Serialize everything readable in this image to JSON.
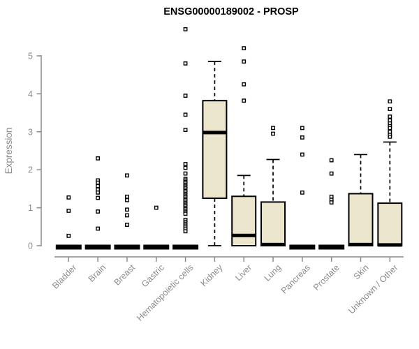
{
  "title": "ENSG00000189002 - PROSP",
  "chart_data": {
    "type": "boxplot",
    "title": "ENSG00000189002 - PROSP",
    "xlabel": "",
    "ylabel": "Expression",
    "ylim": [
      0,
      5
    ],
    "yticks": [
      0,
      1,
      2,
      3,
      4,
      5
    ],
    "grid": false,
    "legend": false,
    "colors": {
      "box_fill": "#ECE6CE",
      "box_stroke": "#000000",
      "median": "#000000",
      "whisker": "#000000",
      "axis": "#8c8c8c",
      "tick_label": "#8c8c8c",
      "title": "#000000",
      "background": "#ffffff"
    },
    "categories": [
      "Bladder",
      "Brain",
      "Breast",
      "Gastric",
      "Hematopoietic cells",
      "Kidney",
      "Liver",
      "Lung",
      "Pancreas",
      "Prostate",
      "Skin",
      "Unknown / Other"
    ],
    "boxes": [
      {
        "category": "Bladder",
        "q1": 0,
        "median": 0,
        "q3": 0,
        "whisker_low": 0,
        "whisker_high": 0,
        "outliers": [
          1.27,
          0.92,
          0.26
        ]
      },
      {
        "category": "Brain",
        "q1": 0,
        "median": 0,
        "q3": 0,
        "whisker_low": 0,
        "whisker_high": 0,
        "outliers": [
          2.3,
          1.72,
          1.66,
          1.57,
          1.48,
          1.4,
          1.26,
          0.9,
          0.45
        ]
      },
      {
        "category": "Breast",
        "q1": 0,
        "median": 0,
        "q3": 0,
        "whisker_low": 0,
        "whisker_high": 0,
        "outliers": [
          1.85,
          1.29,
          1.2,
          0.95,
          0.8,
          0.55
        ]
      },
      {
        "category": "Gastric",
        "q1": 0,
        "median": 0,
        "q3": 0,
        "whisker_low": 0,
        "whisker_high": 0,
        "outliers": [
          1.0
        ]
      },
      {
        "category": "Hematopoietic cells",
        "q1": 0,
        "median": 0,
        "q3": 0,
        "whisker_low": 0,
        "whisker_high": 0,
        "outliers": [
          5.7,
          4.8,
          3.95,
          3.45,
          3.05,
          2.15,
          2.05,
          1.9,
          1.76,
          1.72,
          1.68,
          1.64,
          1.6,
          1.56,
          1.52,
          1.48,
          1.44,
          1.4,
          1.36,
          1.32,
          1.28,
          1.24,
          1.2,
          1.16,
          1.12,
          1.08,
          1.04,
          1.0,
          0.96,
          0.92,
          0.88,
          0.84,
          0.68,
          0.63,
          0.58,
          0.53,
          0.48,
          0.43,
          0.38
        ]
      },
      {
        "category": "Kidney",
        "q1": 1.25,
        "median": 2.98,
        "q3": 3.82,
        "whisker_low": 0,
        "whisker_high": 4.85,
        "outliers": []
      },
      {
        "category": "Liver",
        "q1": 0,
        "median": 0.27,
        "q3": 1.3,
        "whisker_low": 0,
        "whisker_high": 1.85,
        "outliers": [
          5.2,
          4.85,
          4.25,
          3.82
        ]
      },
      {
        "category": "Lung",
        "q1": 0,
        "median": 0.03,
        "q3": 1.15,
        "whisker_low": 0,
        "whisker_high": 2.27,
        "outliers": [
          3.1,
          2.95
        ]
      },
      {
        "category": "Pancreas",
        "q1": 0,
        "median": 0,
        "q3": 0,
        "whisker_low": 0,
        "whisker_high": 0,
        "outliers": [
          3.1,
          2.85,
          2.4,
          1.4
        ]
      },
      {
        "category": "Prostate",
        "q1": 0,
        "median": 0,
        "q3": 0,
        "whisker_low": 0,
        "whisker_high": 0,
        "outliers": [
          2.25,
          1.9,
          1.29,
          1.21,
          1.14
        ]
      },
      {
        "category": "Skin",
        "q1": 0,
        "median": 0.03,
        "q3": 1.37,
        "whisker_low": 0,
        "whisker_high": 2.4,
        "outliers": []
      },
      {
        "category": "Unknown / Other",
        "q1": 0,
        "median": 0.02,
        "q3": 1.12,
        "whisker_low": 0,
        "whisker_high": 2.73,
        "outliers": [
          3.8,
          3.6,
          3.4,
          3.3,
          3.22,
          3.15,
          3.1,
          3.0,
          2.92,
          2.87
        ]
      }
    ]
  }
}
